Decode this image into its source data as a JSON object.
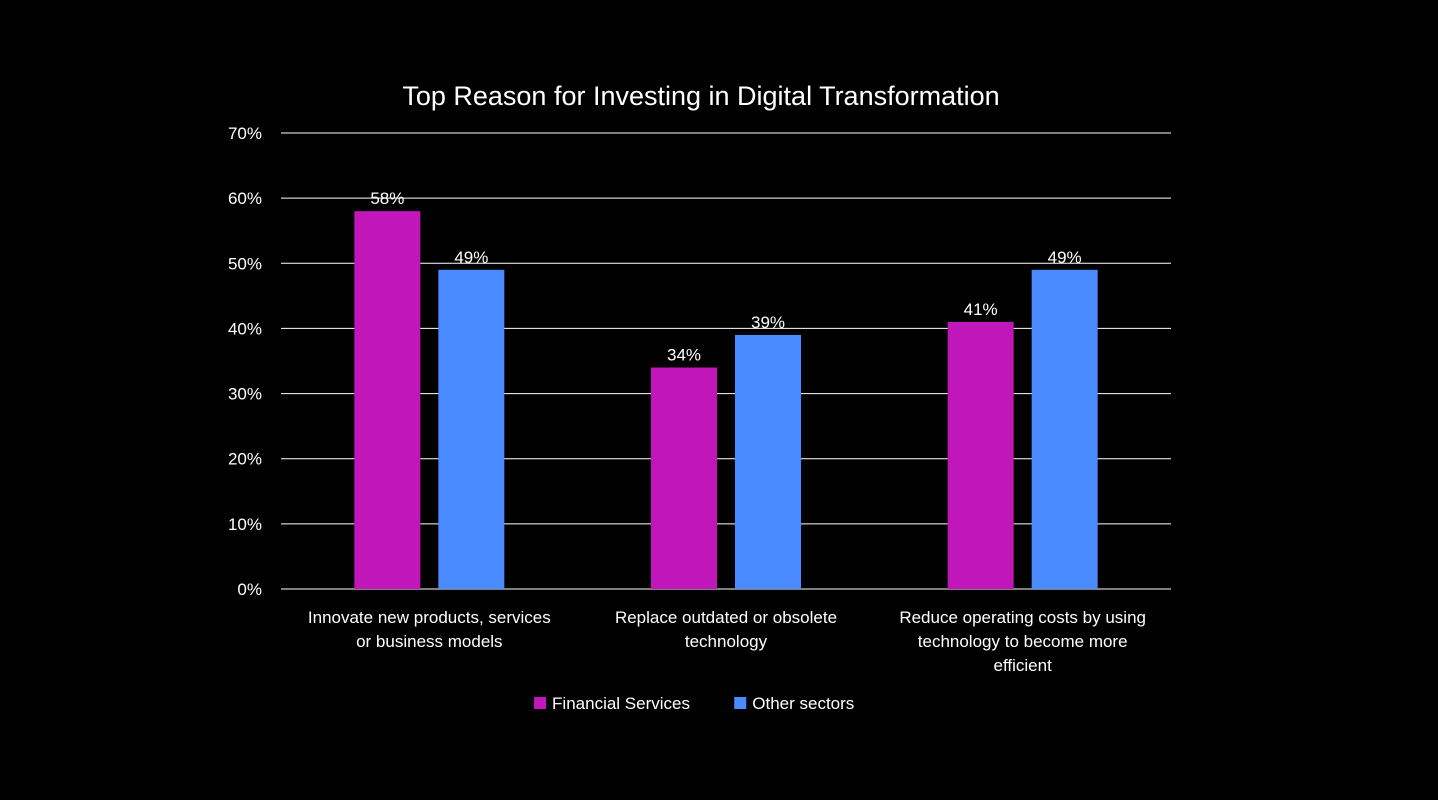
{
  "chart_data": {
    "type": "bar",
    "title": "Top Reason for Investing in Digital Transformation",
    "xlabel": "",
    "ylabel": "",
    "ylim": [
      0,
      70
    ],
    "y_tick_step": 10,
    "y_tick_format": "percent",
    "grid": true,
    "legend_position": "bottom",
    "categories": [
      [
        "Innovate new products, services",
        "or business models"
      ],
      [
        "Replace outdated or obsolete",
        "technology"
      ],
      [
        "Reduce operating costs by using",
        "technology to become more",
        "efficient"
      ]
    ],
    "series": [
      {
        "name": "Financial Services",
        "color": "#c116b9",
        "values": [
          58,
          34,
          41
        ],
        "labels": [
          "58%",
          "34%",
          "41%"
        ]
      },
      {
        "name": "Other sectors",
        "color": "#4a8bff",
        "values": [
          49,
          39,
          49
        ],
        "labels": [
          "49%",
          "39%",
          "49%"
        ]
      }
    ]
  }
}
